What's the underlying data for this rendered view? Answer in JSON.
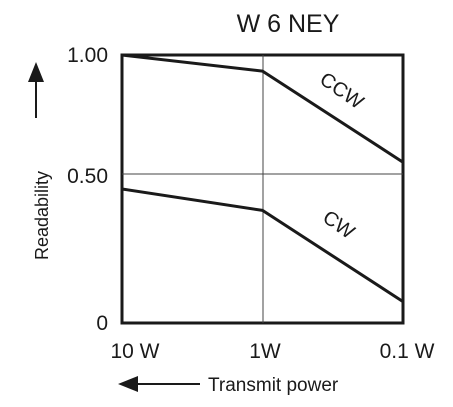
{
  "chart_data": {
    "type": "line",
    "title": "W 6 NEY",
    "xlabel": "Transmit power",
    "ylabel": "Readability",
    "x_categories": [
      "10 W",
      "1W",
      "0.1 W"
    ],
    "x_log_values": [
      10,
      1,
      0.1
    ],
    "y_ticks": [
      "1.00",
      "0.50",
      "0"
    ],
    "y_tick_values": [
      1.0,
      0.5,
      0
    ],
    "ylim": [
      0,
      1.0
    ],
    "series": [
      {
        "name": "CCW",
        "values": [
          1.0,
          0.94,
          0.6
        ]
      },
      {
        "name": "CW",
        "values": [
          0.5,
          0.42,
          0.08
        ]
      }
    ],
    "grid": true,
    "x_axis_direction": "decreasing-right",
    "colors": {
      "ink": "#1a1a1a",
      "grid": "#444444",
      "background": "#ffffff"
    }
  }
}
